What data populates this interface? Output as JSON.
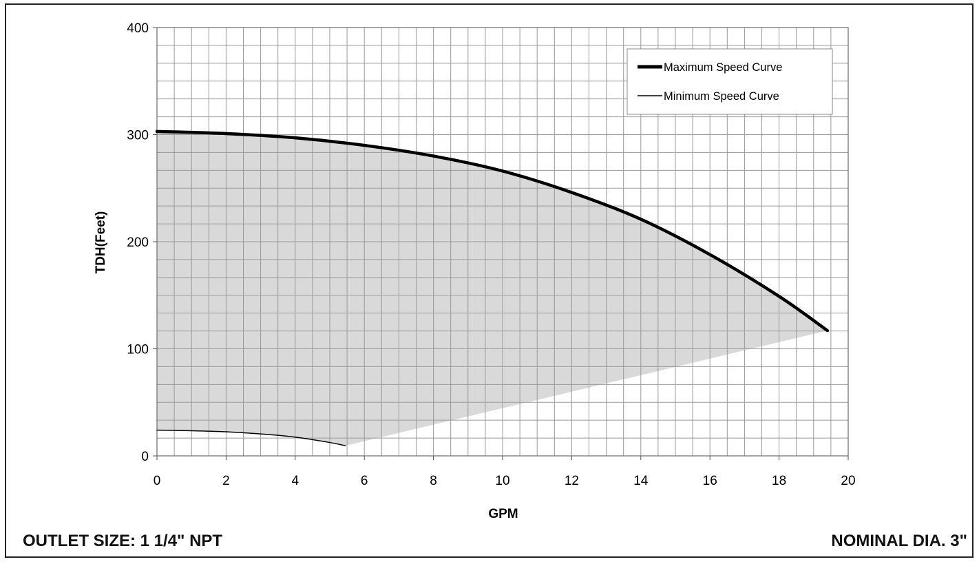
{
  "chart_data": {
    "type": "line",
    "xlabel": "GPM",
    "ylabel": "TDH(Feet)",
    "xlim": [
      0,
      20
    ],
    "ylim": [
      0,
      400
    ],
    "x_ticks": [
      "0",
      "2",
      "4",
      "6",
      "8",
      "10",
      "12",
      "14",
      "16",
      "18",
      "20"
    ],
    "y_ticks": [
      "0",
      "100",
      "200",
      "300",
      "400"
    ],
    "grid": true,
    "legend_position": "top-right",
    "series": [
      {
        "name": "Maximum Speed Curve",
        "color": "#000000",
        "x": [
          0,
          2,
          4,
          6,
          8,
          10,
          12,
          14,
          16,
          18,
          19.4
        ],
        "y": [
          303,
          301,
          297,
          290,
          280,
          266,
          246,
          221,
          188,
          149,
          117
        ]
      },
      {
        "name": "Minimum Speed Curve",
        "color": "#000000",
        "x": [
          0,
          1,
          2,
          3,
          4,
          5,
          5.45
        ],
        "y": [
          24,
          23.5,
          22.5,
          20.5,
          17.5,
          12.5,
          9.5
        ]
      }
    ],
    "operating_region": {
      "color": "#d9d9d9",
      "lower_boundary": {
        "x": [
          5.45,
          19.4
        ],
        "y": [
          9.5,
          117
        ]
      }
    }
  },
  "footer": {
    "outlet": "OUTLET SIZE: 1 1/4\" NPT",
    "diameter": "NOMINAL DIA. 3\""
  }
}
